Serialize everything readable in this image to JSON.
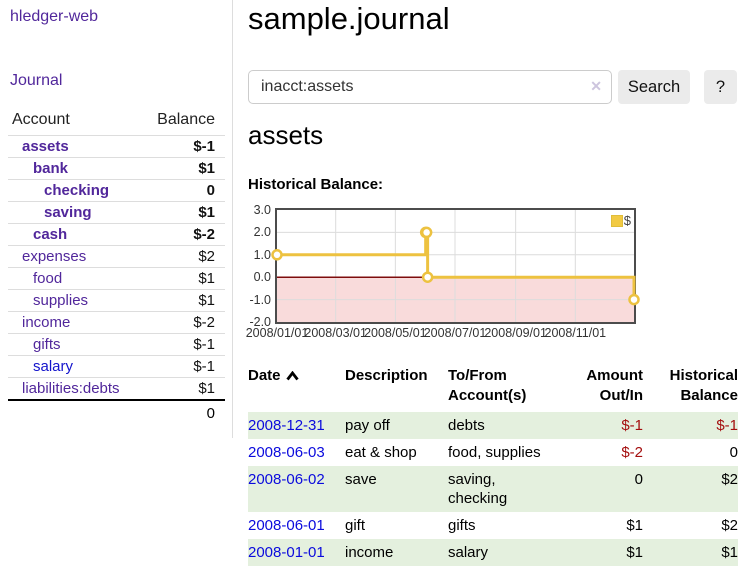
{
  "app": {
    "brand": "hledger-web"
  },
  "sidebar": {
    "journal_label": "Journal",
    "accounts_table": {
      "headers": {
        "account": "Account",
        "balance": "Balance"
      },
      "rows": [
        {
          "name": "assets",
          "balance": "$-1",
          "level": 0,
          "bold": true,
          "neg": true
        },
        {
          "name": "bank",
          "balance": "$1",
          "level": 1,
          "bold": true
        },
        {
          "name": "checking",
          "balance": "0",
          "level": 2,
          "bold": true
        },
        {
          "name": "saving",
          "balance": "$1",
          "level": 2,
          "bold": true
        },
        {
          "name": "cash",
          "balance": "$-2",
          "level": 1,
          "bold": true,
          "neg": true
        },
        {
          "name": "expenses",
          "balance": "$2",
          "level": 0
        },
        {
          "name": "food",
          "balance": "$1",
          "level": 1
        },
        {
          "name": "supplies",
          "balance": "$1",
          "level": 1
        },
        {
          "name": "income",
          "balance": "$-2",
          "level": 0,
          "muted": true
        },
        {
          "name": "gifts",
          "balance": "$-1",
          "level": 1,
          "muted": true
        },
        {
          "name": "salary",
          "balance": "$-1",
          "level": 1,
          "muted": true,
          "blue": true
        },
        {
          "name": "liabilities:debts",
          "balance": "$1",
          "level": 0
        }
      ],
      "total": "0"
    }
  },
  "main": {
    "title": "sample.journal",
    "search": {
      "value": "inacct:assets",
      "clear_icon": "✕",
      "button_label": "Search",
      "help_label": "?"
    },
    "account_heading": "assets",
    "chart_heading": "Historical Balance:"
  },
  "chart_data": {
    "type": "line",
    "step": true,
    "title": "Historical Balance",
    "series": [
      {
        "name": "$",
        "color": "#edc240",
        "points": [
          [
            "2008-01-01",
            1
          ],
          [
            "2008-06-01",
            2
          ],
          [
            "2008-06-02",
            2
          ],
          [
            "2008-06-03",
            0
          ],
          [
            "2008-12-31",
            -1
          ]
        ]
      }
    ],
    "ylim": [
      -2,
      3
    ],
    "yticks": [
      {
        "label": "3.0",
        "value": 3
      },
      {
        "label": "2.0",
        "value": 2
      },
      {
        "label": "1.0",
        "value": 1
      },
      {
        "label": "0.0",
        "value": 0
      },
      {
        "label": "-1.0",
        "value": -1
      },
      {
        "label": "-2.0",
        "value": -2
      }
    ],
    "xticks": [
      {
        "label": "2008/01/01",
        "value": "2008-01-01"
      },
      {
        "label": "2008/03/01",
        "value": "2008-03-01"
      },
      {
        "label": "2008/05/01",
        "value": "2008-05-01"
      },
      {
        "label": "2008/07/01",
        "value": "2008-07-01"
      },
      {
        "label": "2008/09/01",
        "value": "2008-09-01"
      },
      {
        "label": "2008/11/01",
        "value": "2008-11-01"
      }
    ],
    "xrange": [
      "2008-01-01",
      "2008-12-31"
    ],
    "legend": {
      "label": "$",
      "position": "top-right",
      "swatch_color": "#f2ca43"
    },
    "grid": true,
    "colors": {
      "grid": "#dcdcdc",
      "negative_region": "#f9dbdb",
      "zero_line": "#7e0c0c",
      "border": "#4c4c4c"
    }
  },
  "register": {
    "headers": [
      {
        "key": "date",
        "label": "Date",
        "sort": "asc"
      },
      {
        "key": "description",
        "label": "Description"
      },
      {
        "key": "accounts",
        "label": "To/From\nAccount(s)"
      },
      {
        "key": "amount",
        "label": "Amount\nOut/In",
        "align": "right"
      },
      {
        "key": "balance",
        "label": "Historical\nBalance",
        "align": "right"
      }
    ],
    "rows": [
      {
        "date": "2008-12-31",
        "description": "pay off",
        "to_from": "debts",
        "amount": "$-1",
        "amount_neg": true,
        "balance": "$-1",
        "balance_neg": true
      },
      {
        "date": "2008-06-03",
        "description": "eat & shop",
        "to_from": "food, supplies",
        "amount": "$-2",
        "amount_neg": true,
        "balance": "0"
      },
      {
        "date": "2008-06-02",
        "description": "save",
        "to_from": "saving,\nchecking",
        "amount": "0",
        "balance": "$2"
      },
      {
        "date": "2008-06-01",
        "description": "gift",
        "to_from": "gifts",
        "amount": "$1",
        "balance": "$2"
      },
      {
        "date": "2008-01-01",
        "description": "income",
        "to_from": "salary",
        "amount": "$1",
        "balance": "$1"
      }
    ]
  }
}
